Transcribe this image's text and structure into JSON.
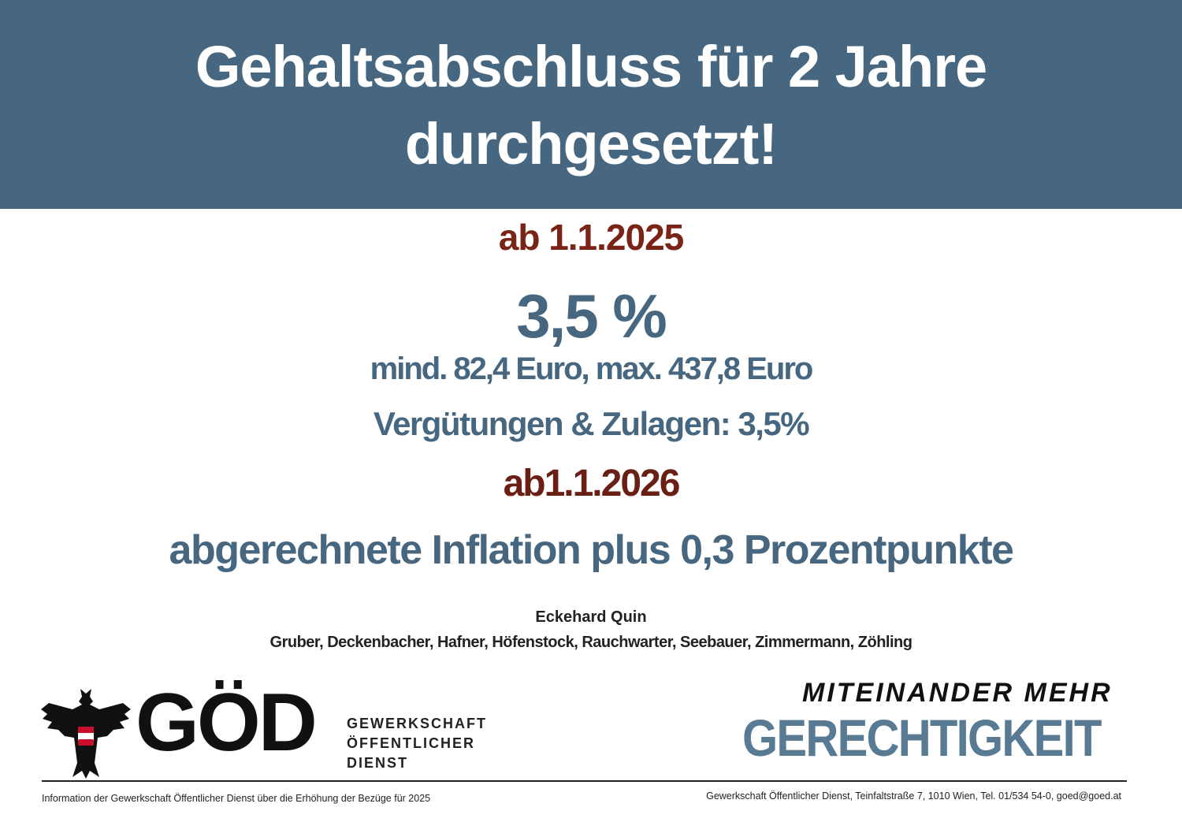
{
  "header": {
    "title_line1": "Gehaltsabschluss für 2 Jahre",
    "title_line2": "durchgesetzt!"
  },
  "section_2025": {
    "date": "ab 1.1.2025",
    "percent": "3,5 %",
    "limits": "mind.  82,4 Euro, max. 437,8 Euro",
    "allowances": "Vergütungen & Zulagen: 3,5%"
  },
  "section_2026": {
    "date": "ab1.1.2026",
    "text": "abgerechnete Inflation plus 0,3 Prozentpunkte"
  },
  "negotiators": {
    "lead": "Eckehard Quin",
    "members": "Gruber, Deckenbacher, Hafner, Höfenstock, Rauchwarter, Seebauer, Zimmermann, Zöhling"
  },
  "logo": {
    "name": "GÖD",
    "line1": "GEWERKSCHAFT",
    "line2": "ÖFFENTLICHER",
    "line3": "DIENST"
  },
  "slogan": {
    "line1": "MITEINANDER MEHR",
    "line2": "GERECHTIGKEIT"
  },
  "footer": {
    "left": "Information der Gewerkschaft Öffentlicher Dienst über die Erhöhung der Bezüge für 2025",
    "right": "Gewerkschaft Öffentlicher Dienst, Teinfaltstraße 7, 1010 Wien, Tel. 01/534 54-0, goed@goed.at"
  }
}
